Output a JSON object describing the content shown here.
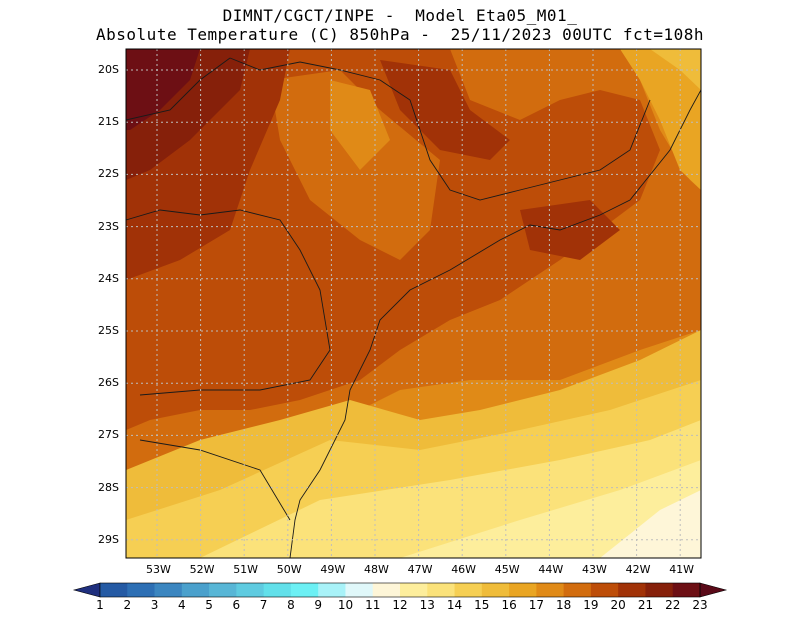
{
  "header": {
    "line1": "DIMNT/CGCT/INPE -  Model Eta05_M01_",
    "line2": "Absolute Temperature (C) 850hPa -  25/11/2023 00UTC fct=108h"
  },
  "map": {
    "lat_labels": [
      "20S",
      "21S",
      "22S",
      "23S",
      "24S",
      "25S",
      "26S",
      "27S",
      "28S",
      "29S"
    ],
    "lon_labels": [
      "53W",
      "52W",
      "51W",
      "50W",
      "49W",
      "48W",
      "47W",
      "46W",
      "45W",
      "44W",
      "43W",
      "42W",
      "41W"
    ],
    "region_temps_c": {
      "northwest_corner": 23,
      "mato_grosso_do_sul": 21,
      "interior_parana_sp": 19,
      "sao_paulo_coast_ocean": 19,
      "rio_de_janeiro_area": 20,
      "southern_ocean": 15,
      "southeast_ocean_corner": 12
    }
  },
  "colorbar": {
    "labels": [
      "1",
      "2",
      "3",
      "4",
      "5",
      "6",
      "7",
      "8",
      "9",
      "10",
      "11",
      "12",
      "13",
      "14",
      "15",
      "16",
      "17",
      "18",
      "19",
      "20",
      "21",
      "22",
      "23"
    ],
    "colors": [
      "#1f2f7e",
      "#245aa4",
      "#2d6fb4",
      "#3b86c0",
      "#4aa0cc",
      "#58b6d6",
      "#5fcbe0",
      "#62e0ea",
      "#6cf0f4",
      "#a8f2f8",
      "#e0f8fa",
      "#fef6d8",
      "#fdee9c",
      "#fbe27a",
      "#f6cf53",
      "#efbc3a",
      "#e9a523",
      "#e08a17",
      "#d26c0e",
      "#bd4d08",
      "#a13207",
      "#86200a",
      "#6d0f14",
      "#5a0a18"
    ]
  }
}
